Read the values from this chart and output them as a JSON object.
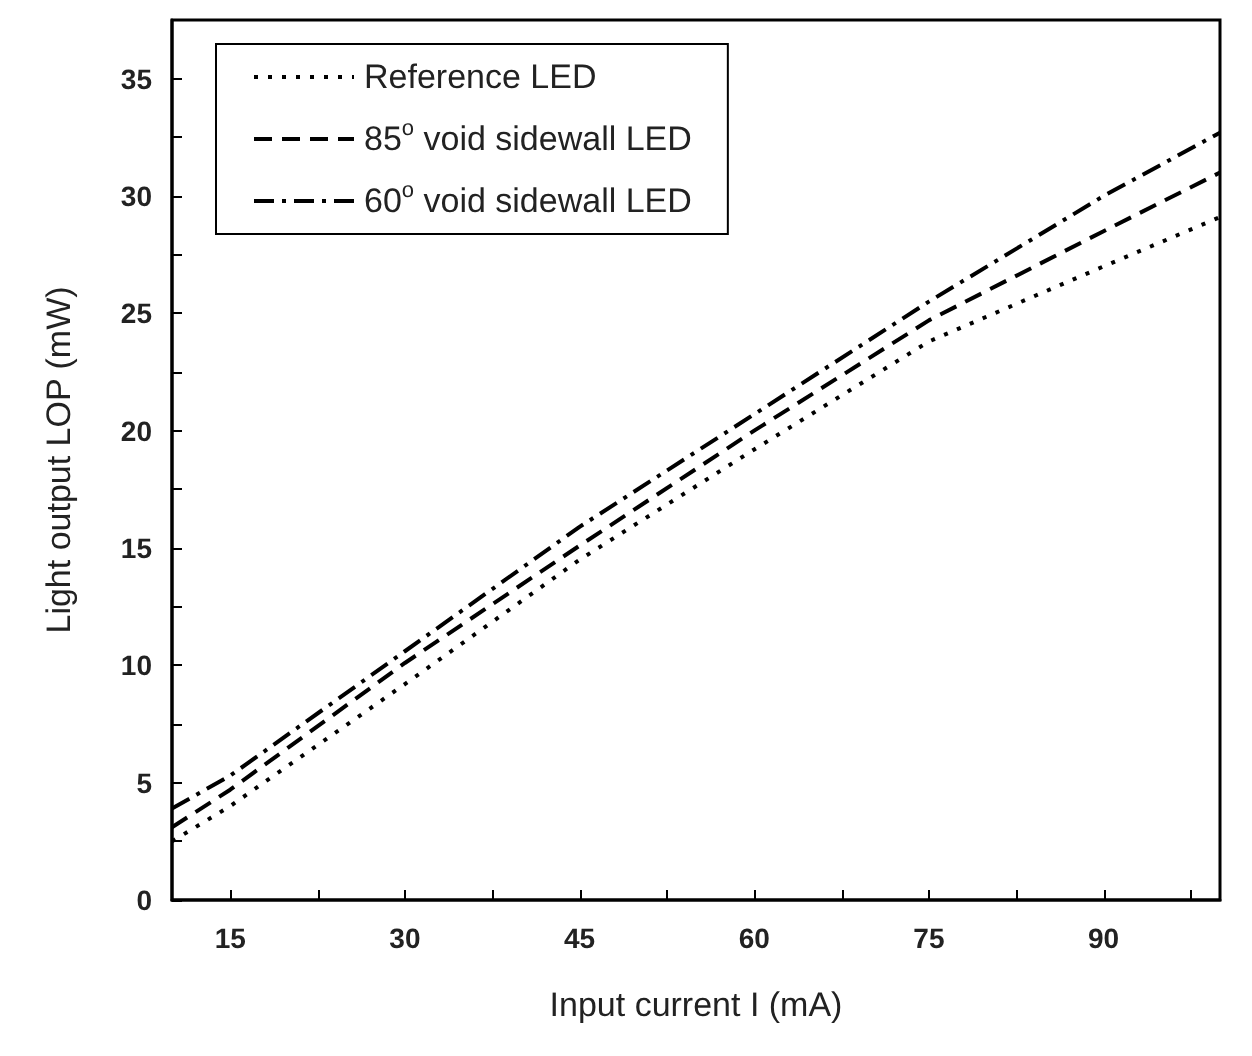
{
  "chart_data": {
    "type": "line",
    "xlabel": "Input current I (mA)",
    "ylabel": "Light output LOP (mW)",
    "x": [
      10,
      15,
      30,
      45,
      60,
      75,
      90,
      100
    ],
    "series": [
      {
        "name": "Reference LED",
        "color": "#000000",
        "line_style": "dotted",
        "values": [
          2.5,
          4.0,
          9.2,
          14.5,
          19.2,
          23.8,
          27.0,
          29.1
        ]
      },
      {
        "name": "85$^{o}$ void sidewall LED",
        "color": "#000000",
        "line_style": "dashed",
        "values": [
          3.1,
          4.7,
          10.1,
          15.1,
          20.0,
          24.7,
          28.5,
          31.0
        ]
      },
      {
        "name": "60$^{o}$ void sidewall LED",
        "color": "#000000",
        "line_style": "dashdot",
        "values": [
          3.9,
          5.3,
          10.6,
          15.9,
          20.7,
          25.5,
          30.0,
          32.7
        ]
      }
    ],
    "xlim": [
      10,
      100
    ],
    "xticks": [
      15,
      {
        "value": 22.5,
        "label": null
      },
      30,
      {
        "value": 37.5,
        "label": null
      },
      45,
      {
        "value": 52.5,
        "label": null
      },
      60,
      {
        "value": 67.5,
        "label": null
      },
      75,
      {
        "value": 82.5,
        "label": null
      },
      90,
      {
        "value": 97.5,
        "label": null
      }
    ],
    "ylim": [
      0,
      37.5
    ],
    "yticks": [
      0,
      {
        "value": 2.5,
        "label": null
      },
      5,
      {
        "value": 7.5,
        "label": null
      },
      10,
      {
        "value": 12.5,
        "label": null
      },
      15,
      {
        "value": 17.5,
        "label": null
      },
      20,
      {
        "value": 22.5,
        "label": null
      },
      25,
      {
        "value": 27.5,
        "label": null
      },
      30,
      {
        "value": 32.5,
        "label": null
      },
      35
    ],
    "grid": false,
    "legend": "top left",
    "marker": "none"
  }
}
